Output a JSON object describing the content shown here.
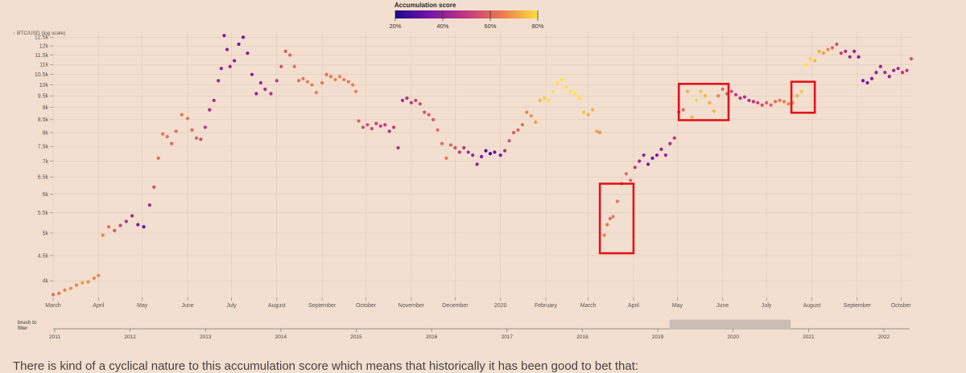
{
  "legend": {
    "title": "Accumulation score",
    "ticks": [
      "20%",
      "40%",
      "60%",
      "80%"
    ],
    "colors": [
      "#1a0a8f",
      "#7b14a8",
      "#c23a7f",
      "#ec7a4e",
      "#fde23a"
    ]
  },
  "axis": {
    "y_title": "↑ BTC/USD (log scale)",
    "y_ticks": [
      "4k",
      "4.5k",
      "5k",
      "5.5k",
      "6k",
      "6.5k",
      "7k",
      "7.5k",
      "8k",
      "8.5k",
      "9k",
      "9.5k",
      "10k",
      "10.5k",
      "11k",
      "11.5k",
      "12k",
      "12.5k"
    ],
    "x_months": [
      "March",
      "April",
      "May",
      "June",
      "July",
      "August",
      "September",
      "October",
      "November",
      "December",
      "2020",
      "February",
      "March",
      "April",
      "May",
      "June",
      "July",
      "August",
      "September",
      "October"
    ]
  },
  "brush": {
    "label_line1": "brush to",
    "label_line2": "filter",
    "years": [
      "2011",
      "2012",
      "2013",
      "2014",
      "2015",
      "2016",
      "2017",
      "2018",
      "2019",
      "2020",
      "2021",
      "2022"
    ]
  },
  "paragraph": "There is kind of a cyclical nature to this accumulation score which means that historically it has been good to bet that:",
  "colors": {
    "background": "#f3dfcf",
    "grid": "#e2cbb9",
    "highlight": "#e3131b",
    "brush_selection": "#cbbdb2"
  },
  "chart_data": {
    "type": "scatter",
    "title": "",
    "xlabel": "",
    "ylabel": "↑ BTC/USD (log scale)",
    "y_scale": "log",
    "xlim": [
      "2019-03-01",
      "2020-10-08"
    ],
    "ylim": [
      3700,
      12800
    ],
    "color_encoding": "Accumulation score",
    "series": [
      {
        "points": [
          [
            "2019-03-01",
            3750,
            0.62
          ],
          [
            "2019-03-05",
            3770,
            0.64
          ],
          [
            "2019-03-09",
            3830,
            0.66
          ],
          [
            "2019-03-13",
            3860,
            0.68
          ],
          [
            "2019-03-17",
            3920,
            0.67
          ],
          [
            "2019-03-21",
            3960,
            0.69
          ],
          [
            "2019-03-25",
            3980,
            0.68
          ],
          [
            "2019-03-29",
            4050,
            0.66
          ],
          [
            "2019-04-01",
            4100,
            0.67
          ],
          [
            "2019-04-04",
            4950,
            0.66
          ],
          [
            "2019-04-08",
            5150,
            0.63
          ],
          [
            "2019-04-12",
            5060,
            0.58
          ],
          [
            "2019-04-16",
            5180,
            0.52
          ],
          [
            "2019-04-20",
            5280,
            0.45
          ],
          [
            "2019-04-24",
            5420,
            0.42
          ],
          [
            "2019-04-28",
            5200,
            0.35
          ],
          [
            "2019-05-02",
            5150,
            0.3
          ],
          [
            "2019-05-06",
            5700,
            0.44
          ],
          [
            "2019-05-09",
            6200,
            0.55
          ],
          [
            "2019-05-12",
            7100,
            0.62
          ],
          [
            "2019-05-15",
            7950,
            0.63
          ],
          [
            "2019-05-18",
            7850,
            0.62
          ],
          [
            "2019-05-21",
            7600,
            0.6
          ],
          [
            "2019-05-24",
            8050,
            0.61
          ],
          [
            "2019-05-28",
            8700,
            0.63
          ],
          [
            "2019-06-01",
            8550,
            0.64
          ],
          [
            "2019-06-04",
            8100,
            0.6
          ],
          [
            "2019-06-07",
            7800,
            0.58
          ],
          [
            "2019-06-10",
            7750,
            0.54
          ],
          [
            "2019-06-13",
            8200,
            0.5
          ],
          [
            "2019-06-16",
            8900,
            0.44
          ],
          [
            "2019-06-19",
            9300,
            0.43
          ],
          [
            "2019-06-22",
            10200,
            0.42
          ],
          [
            "2019-06-24",
            10800,
            0.38
          ],
          [
            "2019-06-26",
            12600,
            0.36
          ],
          [
            "2019-06-28",
            11800,
            0.4
          ],
          [
            "2019-06-30",
            10900,
            0.42
          ],
          [
            "2019-07-03",
            11200,
            0.38
          ],
          [
            "2019-07-06",
            12100,
            0.35
          ],
          [
            "2019-07-09",
            12500,
            0.33
          ],
          [
            "2019-07-12",
            11600,
            0.37
          ],
          [
            "2019-07-15",
            10500,
            0.39
          ],
          [
            "2019-07-18",
            9600,
            0.41
          ],
          [
            "2019-07-21",
            10100,
            0.42
          ],
          [
            "2019-07-24",
            9800,
            0.44
          ],
          [
            "2019-07-28",
            9600,
            0.45
          ],
          [
            "2019-08-01",
            10200,
            0.5
          ],
          [
            "2019-08-04",
            10900,
            0.55
          ],
          [
            "2019-08-07",
            11700,
            0.58
          ],
          [
            "2019-08-10",
            11500,
            0.6
          ],
          [
            "2019-08-13",
            10900,
            0.62
          ],
          [
            "2019-08-16",
            10200,
            0.63
          ],
          [
            "2019-08-19",
            10300,
            0.64
          ],
          [
            "2019-08-22",
            10150,
            0.65
          ],
          [
            "2019-08-25",
            10000,
            0.66
          ],
          [
            "2019-08-28",
            9650,
            0.66
          ],
          [
            "2019-09-01",
            10100,
            0.64
          ],
          [
            "2019-09-04",
            10500,
            0.63
          ],
          [
            "2019-09-07",
            10400,
            0.64
          ],
          [
            "2019-09-10",
            10250,
            0.66
          ],
          [
            "2019-09-13",
            10400,
            0.66
          ],
          [
            "2019-09-16",
            10250,
            0.65
          ],
          [
            "2019-09-19",
            10150,
            0.64
          ],
          [
            "2019-09-22",
            10000,
            0.65
          ],
          [
            "2019-09-24",
            9700,
            0.66
          ],
          [
            "2019-09-26",
            8450,
            0.6
          ],
          [
            "2019-09-29",
            8200,
            0.56
          ],
          [
            "2019-10-02",
            8300,
            0.55
          ],
          [
            "2019-10-05",
            8150,
            0.54
          ],
          [
            "2019-10-08",
            8350,
            0.52
          ],
          [
            "2019-10-11",
            8250,
            0.5
          ],
          [
            "2019-10-14",
            8300,
            0.5
          ],
          [
            "2019-10-17",
            8050,
            0.46
          ],
          [
            "2019-10-20",
            8200,
            0.5
          ],
          [
            "2019-10-23",
            7450,
            0.46
          ],
          [
            "2019-10-26",
            9300,
            0.42
          ],
          [
            "2019-10-29",
            9400,
            0.46
          ],
          [
            "2019-11-01",
            9200,
            0.5
          ],
          [
            "2019-11-04",
            9300,
            0.52
          ],
          [
            "2019-11-07",
            9150,
            0.54
          ],
          [
            "2019-11-10",
            8800,
            0.56
          ],
          [
            "2019-11-13",
            8700,
            0.58
          ],
          [
            "2019-11-16",
            8500,
            0.58
          ],
          [
            "2019-11-19",
            8100,
            0.6
          ],
          [
            "2019-11-22",
            7600,
            0.62
          ],
          [
            "2019-11-25",
            7100,
            0.64
          ],
          [
            "2019-11-28",
            7550,
            0.6
          ],
          [
            "2019-12-01",
            7450,
            0.55
          ],
          [
            "2019-12-04",
            7300,
            0.5
          ],
          [
            "2019-12-07",
            7450,
            0.47
          ],
          [
            "2019-12-10",
            7300,
            0.45
          ],
          [
            "2019-12-13",
            7200,
            0.42
          ],
          [
            "2019-12-16",
            6900,
            0.38
          ],
          [
            "2019-12-19",
            7150,
            0.35
          ],
          [
            "2019-12-22",
            7350,
            0.3
          ],
          [
            "2019-12-25",
            7250,
            0.28
          ],
          [
            "2019-12-28",
            7300,
            0.32
          ],
          [
            "2020-01-01",
            7200,
            0.35
          ],
          [
            "2020-01-04",
            7350,
            0.45
          ],
          [
            "2020-01-07",
            7700,
            0.55
          ],
          [
            "2020-01-10",
            8000,
            0.58
          ],
          [
            "2020-01-13",
            8100,
            0.6
          ],
          [
            "2020-01-16",
            8300,
            0.62
          ],
          [
            "2020-01-19",
            8800,
            0.66
          ],
          [
            "2020-01-22",
            8650,
            0.68
          ],
          [
            "2020-01-25",
            8400,
            0.7
          ],
          [
            "2020-01-28",
            9300,
            0.74
          ],
          [
            "2020-01-31",
            9400,
            0.78
          ],
          [
            "2020-02-03",
            9300,
            0.8
          ],
          [
            "2020-02-06",
            9700,
            0.84
          ],
          [
            "2020-02-09",
            10100,
            0.86
          ],
          [
            "2020-02-12",
            10250,
            0.86
          ],
          [
            "2020-02-15",
            9900,
            0.85
          ],
          [
            "2020-02-18",
            9700,
            0.84
          ],
          [
            "2020-02-21",
            9600,
            0.82
          ],
          [
            "2020-02-24",
            9400,
            0.8
          ],
          [
            "2020-02-27",
            8800,
            0.76
          ],
          [
            "2020-03-01",
            8700,
            0.72
          ],
          [
            "2020-03-04",
            8900,
            0.74
          ],
          [
            "2020-03-07",
            8050,
            0.7
          ],
          [
            "2020-03-09",
            8000,
            0.68
          ],
          [
            "2020-03-12",
            4950,
            0.66
          ],
          [
            "2020-03-14",
            5200,
            0.64
          ],
          [
            "2020-03-16",
            5350,
            0.62
          ],
          [
            "2020-03-18",
            5400,
            0.64
          ],
          [
            "2020-03-21",
            5800,
            0.64
          ],
          [
            "2020-03-24",
            6300,
            0.62
          ],
          [
            "2020-03-27",
            6600,
            0.62
          ],
          [
            "2020-03-30",
            6400,
            0.6
          ],
          [
            "2020-04-02",
            6800,
            0.5
          ],
          [
            "2020-04-05",
            7000,
            0.44
          ],
          [
            "2020-04-08",
            7200,
            0.4
          ],
          [
            "2020-04-11",
            6900,
            0.35
          ],
          [
            "2020-04-14",
            7100,
            0.33
          ],
          [
            "2020-04-17",
            7200,
            0.36
          ],
          [
            "2020-04-20",
            7400,
            0.4
          ],
          [
            "2020-04-23",
            7200,
            0.42
          ],
          [
            "2020-04-26",
            7600,
            0.45
          ],
          [
            "2020-04-29",
            7800,
            0.48
          ],
          [
            "2020-05-02",
            8800,
            0.55
          ],
          [
            "2020-05-05",
            8900,
            0.6
          ],
          [
            "2020-05-08",
            9700,
            0.72
          ],
          [
            "2020-05-11",
            8600,
            0.74
          ],
          [
            "2020-05-14",
            9300,
            0.78
          ],
          [
            "2020-05-17",
            9700,
            0.76
          ],
          [
            "2020-05-20",
            9500,
            0.74
          ],
          [
            "2020-05-23",
            9200,
            0.72
          ],
          [
            "2020-05-26",
            8850,
            0.74
          ],
          [
            "2020-05-29",
            9500,
            0.66
          ],
          [
            "2020-06-01",
            9800,
            0.62
          ],
          [
            "2020-06-04",
            9600,
            0.58
          ],
          [
            "2020-06-07",
            9700,
            0.55
          ],
          [
            "2020-06-10",
            9550,
            0.5
          ],
          [
            "2020-06-13",
            9400,
            0.48
          ],
          [
            "2020-06-16",
            9450,
            0.46
          ],
          [
            "2020-06-19",
            9300,
            0.45
          ],
          [
            "2020-06-22",
            9250,
            0.48
          ],
          [
            "2020-06-25",
            9200,
            0.52
          ],
          [
            "2020-06-28",
            9100,
            0.55
          ],
          [
            "2020-07-01",
            9200,
            0.58
          ],
          [
            "2020-07-04",
            9100,
            0.6
          ],
          [
            "2020-07-07",
            9250,
            0.62
          ],
          [
            "2020-07-10",
            9300,
            0.64
          ],
          [
            "2020-07-13",
            9250,
            0.65
          ],
          [
            "2020-07-16",
            9150,
            0.66
          ],
          [
            "2020-07-19",
            9200,
            0.7
          ],
          [
            "2020-07-22",
            9500,
            0.72
          ],
          [
            "2020-07-25",
            9700,
            0.76
          ],
          [
            "2020-07-28",
            11000,
            0.8
          ],
          [
            "2020-07-31",
            11300,
            0.78
          ],
          [
            "2020-08-03",
            11200,
            0.74
          ],
          [
            "2020-08-06",
            11700,
            0.72
          ],
          [
            "2020-08-09",
            11600,
            0.7
          ],
          [
            "2020-08-12",
            11800,
            0.66
          ],
          [
            "2020-08-15",
            11900,
            0.6
          ],
          [
            "2020-08-18",
            12100,
            0.55
          ],
          [
            "2020-08-21",
            11600,
            0.5
          ],
          [
            "2020-08-24",
            11700,
            0.45
          ],
          [
            "2020-08-27",
            11400,
            0.42
          ],
          [
            "2020-08-30",
            11700,
            0.4
          ],
          [
            "2020-09-02",
            11400,
            0.38
          ],
          [
            "2020-09-05",
            10200,
            0.35
          ],
          [
            "2020-09-08",
            10100,
            0.36
          ],
          [
            "2020-09-11",
            10300,
            0.38
          ],
          [
            "2020-09-14",
            10600,
            0.4
          ],
          [
            "2020-09-17",
            10900,
            0.42
          ],
          [
            "2020-09-20",
            10600,
            0.44
          ],
          [
            "2020-09-23",
            10400,
            0.4
          ],
          [
            "2020-09-26",
            10700,
            0.42
          ],
          [
            "2020-09-29",
            10800,
            0.44
          ],
          [
            "2020-10-02",
            10600,
            0.48
          ],
          [
            "2020-10-05",
            10700,
            0.5
          ],
          [
            "2020-10-08",
            11300,
            0.56
          ]
        ]
      }
    ],
    "highlight_boxes": [
      {
        "x0": "2020-03-09",
        "x1": "2020-04-01",
        "y0": 4550,
        "y1": 6300
      },
      {
        "x0": "2020-05-02",
        "x1": "2020-06-05",
        "y0": 8480,
        "y1": 10050
      },
      {
        "x0": "2020-07-18",
        "x1": "2020-08-03",
        "y0": 8780,
        "y1": 10150
      }
    ]
  }
}
